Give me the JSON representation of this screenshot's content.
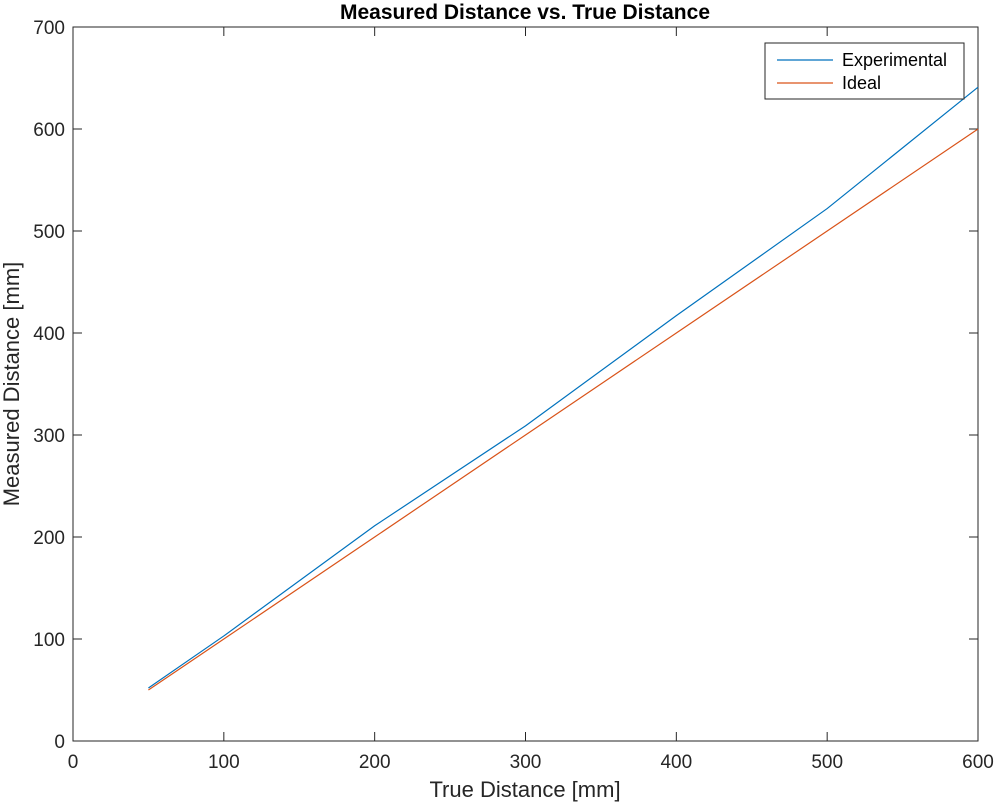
{
  "chart_data": {
    "type": "line",
    "title": "Measured Distance vs. True Distance",
    "xlabel": "True Distance [mm]",
    "ylabel": "Measured Distance [mm]",
    "xlim": [
      0,
      600
    ],
    "ylim": [
      0,
      700
    ],
    "xticks": [
      0,
      100,
      200,
      300,
      400,
      500,
      600
    ],
    "yticks": [
      0,
      100,
      200,
      300,
      400,
      500,
      600,
      700
    ],
    "grid": false,
    "legend_position": "top-right",
    "series": [
      {
        "name": "Experimental",
        "color": "#0072BD",
        "x": [
          50,
          100,
          200,
          300,
          400,
          500,
          600
        ],
        "y": [
          52,
          103,
          211,
          309,
          417,
          522,
          641
        ]
      },
      {
        "name": "Ideal",
        "color": "#D95319",
        "x": [
          50,
          100,
          200,
          300,
          400,
          500,
          600
        ],
        "y": [
          50,
          100,
          200,
          300,
          400,
          500,
          600
        ]
      }
    ]
  }
}
